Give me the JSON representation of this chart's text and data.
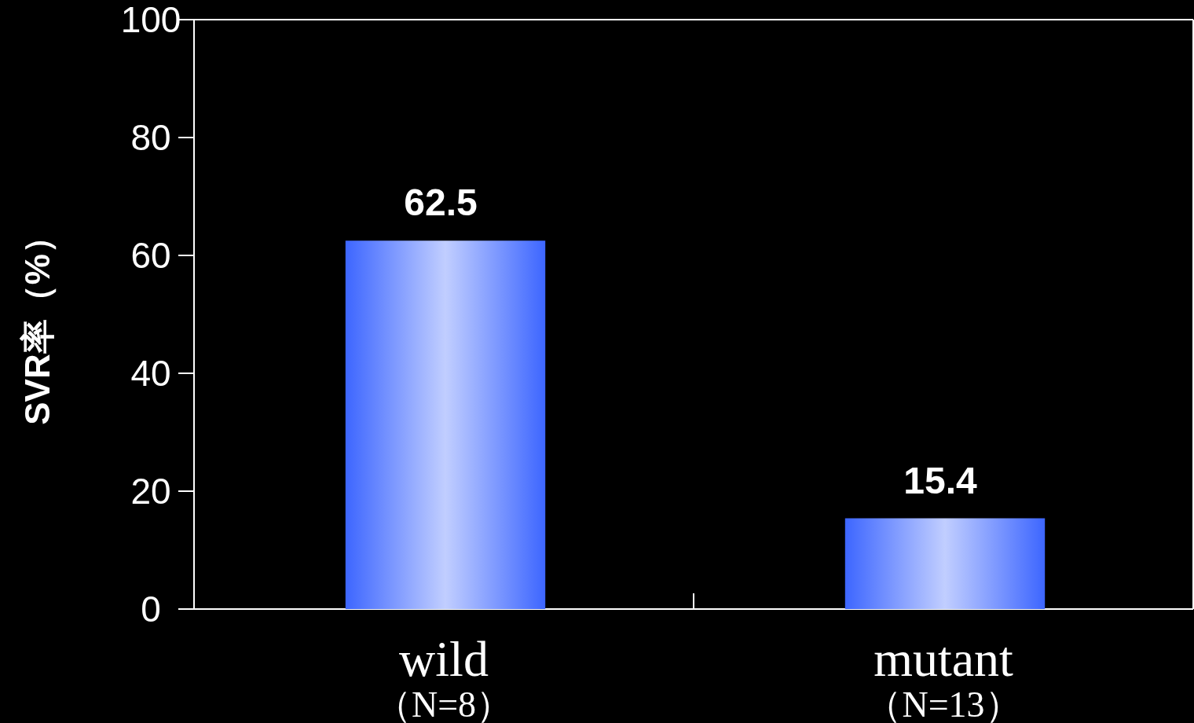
{
  "chart_data": {
    "type": "bar",
    "ylabel": "SVR率（%）",
    "categories": [
      "wild\n（N=8）",
      "mutant\n（N=13）"
    ],
    "values": [
      62.5,
      15.4
    ],
    "color": "#3d66ff",
    "ylim": [
      0,
      100
    ],
    "yticks": [
      0,
      20,
      40,
      60,
      80,
      100
    ],
    "data_labels": true
  }
}
